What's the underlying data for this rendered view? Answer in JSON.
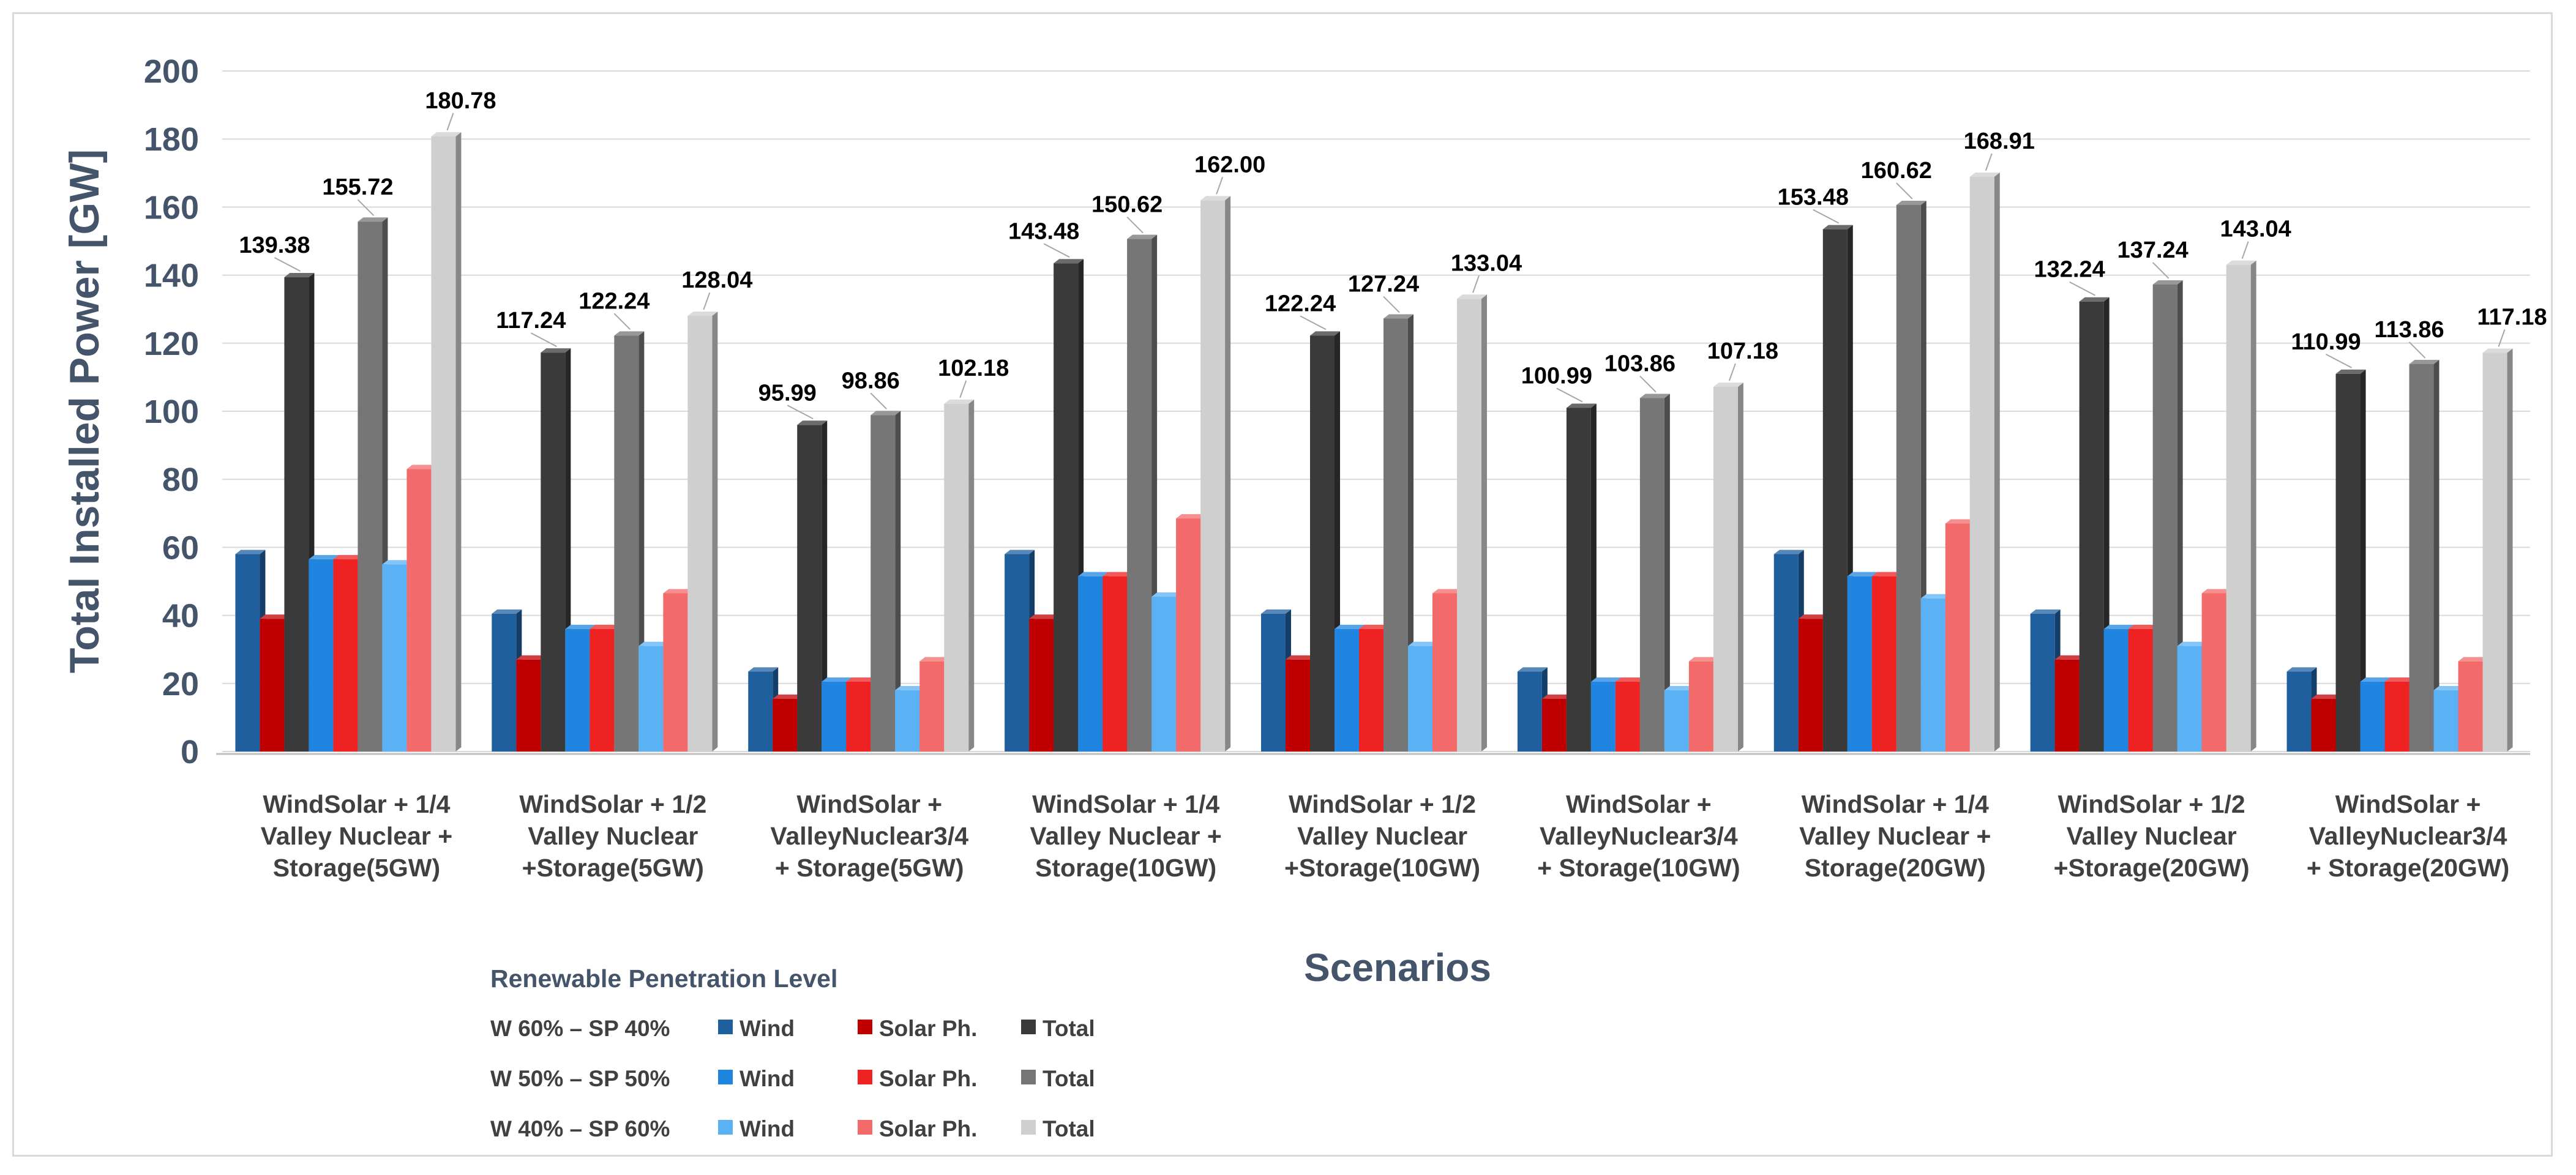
{
  "chart_data": {
    "type": "bar",
    "title": "",
    "xlabel": "Scenarios",
    "ylabel": "Total Installed Power [GW]",
    "ylim": [
      0,
      200
    ],
    "yticks": [
      0,
      20,
      40,
      60,
      80,
      100,
      120,
      140,
      160,
      180,
      200
    ],
    "grid": true,
    "categories": [
      [
        "WindSolar + 1/4",
        "Valley Nuclear +",
        "Storage(5GW)"
      ],
      [
        "WindSolar + 1/2",
        "Valley Nuclear",
        "+Storage(5GW)"
      ],
      [
        "WindSolar +",
        "ValleyNuclear3/4",
        "+ Storage(5GW)"
      ],
      [
        "WindSolar + 1/4",
        "Valley Nuclear +",
        "Storage(10GW)"
      ],
      [
        "WindSolar + 1/2",
        "Valley Nuclear",
        "+Storage(10GW)"
      ],
      [
        "WindSolar +",
        "ValleyNuclear3/4",
        "+ Storage(10GW)"
      ],
      [
        "WindSolar + 1/4",
        "Valley Nuclear +",
        "Storage(20GW)"
      ],
      [
        "WindSolar + 1/2",
        "Valley Nuclear",
        "+Storage(20GW)"
      ],
      [
        "WindSolar +",
        "ValleyNuclear3/4",
        "+ Storage(20GW)"
      ]
    ],
    "series": [
      {
        "name": "Wind",
        "level": "W 60% – SP 40%",
        "color": "#1f5f9e",
        "values": [
          58,
          40.5,
          23.5,
          58,
          40.5,
          23.5,
          58,
          40.5,
          23.5
        ]
      },
      {
        "name": "Solar Ph.",
        "level": "W 60% – SP 40%",
        "color": "#c00000",
        "values": [
          39,
          27,
          15.5,
          39,
          27,
          15.5,
          39,
          27,
          15.5
        ]
      },
      {
        "name": "Total",
        "level": "W 60% – SP 40%",
        "color": "#3a3a3a",
        "values": [
          139.38,
          117.24,
          95.99,
          143.48,
          122.24,
          100.99,
          153.48,
          132.24,
          110.99
        ],
        "labels": [
          "139.38",
          "117.24",
          "95.99",
          "143.48",
          "122.24",
          "100.99",
          "153.48",
          "132.24",
          "110.99"
        ]
      },
      {
        "name": "Wind",
        "level": "W 50% – SP 50%",
        "color": "#1f85e0",
        "values": [
          56.5,
          36,
          20.5,
          51.5,
          36,
          20.5,
          51.5,
          36,
          20.5
        ]
      },
      {
        "name": "Solar Ph.",
        "level": "W 50% – SP 50%",
        "color": "#ee2222",
        "values": [
          56.5,
          36,
          20.5,
          51.5,
          36,
          20.5,
          51.5,
          36,
          20.5
        ]
      },
      {
        "name": "Total",
        "level": "W 50% – SP 50%",
        "color": "#767676",
        "values": [
          155.72,
          122.24,
          98.86,
          150.62,
          127.24,
          103.86,
          160.62,
          137.24,
          113.86
        ],
        "labels": [
          "155.72",
          "122.24",
          "98.86",
          "150.62",
          "127.24",
          "103.86",
          "160.62",
          "137.24",
          "113.86"
        ]
      },
      {
        "name": "Wind",
        "level": "W 40% – SP 60%",
        "color": "#5ab2f5",
        "values": [
          55,
          31,
          18,
          45.5,
          31,
          18,
          45,
          31,
          18
        ]
      },
      {
        "name": "Solar Ph.",
        "level": "W 40% – SP 60%",
        "color": "#f36a6a",
        "values": [
          83,
          46.5,
          26.5,
          68.5,
          46.5,
          26.5,
          67,
          46.5,
          26.5
        ]
      },
      {
        "name": "Total",
        "level": "W 40% – SP 60%",
        "color": "#cfcfcf",
        "values": [
          180.78,
          128.04,
          102.18,
          162.0,
          133.04,
          107.18,
          168.91,
          143.04,
          117.18
        ],
        "labels": [
          "180.78",
          "128.04",
          "102.18",
          "162.00",
          "133.04",
          "107.18",
          "168.91",
          "143.04",
          "117.18"
        ]
      }
    ],
    "legend": {
      "title": "Renewable Penetration Level",
      "placement": "bottom-left",
      "rows": [
        {
          "level": "W 60% – SP 40%",
          "entries": [
            {
              "name": "Wind",
              "color": "#1f5f9e"
            },
            {
              "name": "Solar Ph.",
              "color": "#c00000"
            },
            {
              "name": "Total",
              "color": "#3a3a3a"
            }
          ]
        },
        {
          "level": "W 50% – SP 50%",
          "entries": [
            {
              "name": "Wind",
              "color": "#1f85e0"
            },
            {
              "name": "Solar Ph.",
              "color": "#ee2222"
            },
            {
              "name": "Total",
              "color": "#767676"
            }
          ]
        },
        {
          "level": "W 40% – SP 60%",
          "entries": [
            {
              "name": "Wind",
              "color": "#5ab2f5"
            },
            {
              "name": "Solar Ph.",
              "color": "#f36a6a"
            },
            {
              "name": "Total",
              "color": "#cfcfcf"
            }
          ]
        }
      ]
    }
  }
}
